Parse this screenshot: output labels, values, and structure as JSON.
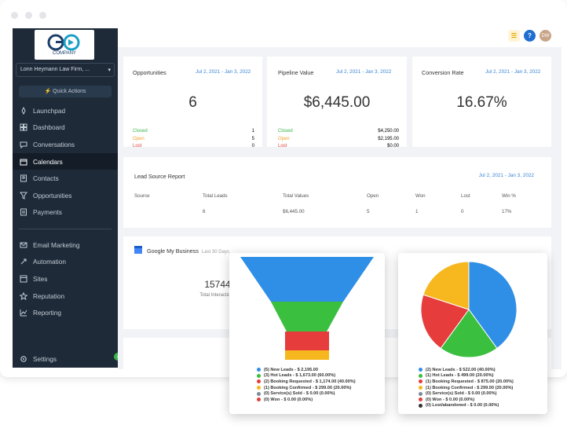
{
  "window": {
    "logo_text_main": "GO",
    "logo_text_sub": "COMPANY",
    "logo_tagline": ""
  },
  "sidebar": {
    "account": "Lonn Heymann Law Firm, ...",
    "quick_actions": "Quick Actions",
    "items_top": [
      {
        "label": "Launchpad",
        "icon": "rocket-icon"
      },
      {
        "label": "Dashboard",
        "icon": "dashboard-icon"
      },
      {
        "label": "Conversations",
        "icon": "chat-icon"
      },
      {
        "label": "Calendars",
        "icon": "calendar-icon",
        "active": true
      },
      {
        "label": "Contacts",
        "icon": "contacts-icon"
      },
      {
        "label": "Opportunities",
        "icon": "funnel-icon"
      },
      {
        "label": "Payments",
        "icon": "payments-icon"
      }
    ],
    "items_bottom": [
      {
        "label": "Email Marketing",
        "icon": "email-icon"
      },
      {
        "label": "Automation",
        "icon": "automation-icon"
      },
      {
        "label": "Sites",
        "icon": "sites-icon"
      },
      {
        "label": "Reputation",
        "icon": "star-icon"
      },
      {
        "label": "Reporting",
        "icon": "chart-icon"
      }
    ],
    "settings": "Settings"
  },
  "header": {
    "help": "?",
    "avatar_initials": "DW"
  },
  "cards": {
    "opportunities": {
      "title": "Opportunities",
      "date": "Jul 2, 2021 - Jan 3, 2022",
      "value": "6",
      "rows": [
        {
          "label": "Closed",
          "value": "1"
        },
        {
          "label": "Open",
          "value": "5"
        },
        {
          "label": "Lost",
          "value": "0"
        }
      ]
    },
    "pipeline": {
      "title": "Pipeline Value",
      "date": "Jul 2, 2021 - Jan 3, 2022",
      "value": "$6,445.00",
      "rows": [
        {
          "label": "Closed",
          "value": "$4,250.00"
        },
        {
          "label": "Open",
          "value": "$2,195.00"
        },
        {
          "label": "Lost",
          "value": "$0.00"
        }
      ]
    },
    "conversion": {
      "title": "Conversion Rate",
      "date": "Jul 2, 2021 - Jan 3, 2022",
      "value": "16.67%"
    }
  },
  "lead_source": {
    "title": "Lead Source Report",
    "date": "Jul 2, 2021 - Jan 3, 2022",
    "headers": [
      "Source",
      "Total Leads",
      "Total Values",
      "Open",
      "Won",
      "Lost",
      "Win %"
    ],
    "row": [
      "",
      "6",
      "$6,445.00",
      "5",
      "1",
      "0",
      "17%"
    ]
  },
  "gmb": {
    "title": "Google My Business",
    "subtitle": "Last 30 Days",
    "value": "15744",
    "label": "Total Interactions"
  },
  "funnel": {
    "colors": {
      "new": "#2f8fe6",
      "hot": "#3bbf3f",
      "booking_requested": "#e63c3c",
      "booking_confirmed": "#f7b81f",
      "sold": "#7b8a97",
      "won": "#e0413b"
    },
    "legend": [
      {
        "label": "(5) New Leads - $ 2,195.00",
        "color": "#2f8fe6"
      },
      {
        "label": "(3) Hot Leads - $ 1,673.00 (60.00%)",
        "color": "#3bbf3f"
      },
      {
        "label": "(2) Booking Requested - $ 1,174.00 (40.00%)",
        "color": "#e63c3c"
      },
      {
        "label": "(1) Booking Confirmed - $ 299.00 (20.00%)",
        "color": "#f7b81f"
      },
      {
        "label": "(0) Service(s) Sold - $ 0.00 (0.00%)",
        "color": "#7b8a97"
      },
      {
        "label": "(0) Won - $ 0.00 (0.00%)",
        "color": "#e0413b"
      }
    ]
  },
  "pie": {
    "slices": [
      {
        "value": 40,
        "color": "#2f8fe6"
      },
      {
        "value": 20,
        "color": "#3bbf3f"
      },
      {
        "value": 20,
        "color": "#e63c3c"
      },
      {
        "value": 20,
        "color": "#f7b81f"
      }
    ],
    "legend": [
      {
        "label": "(2) New Leads - $ 522.00 (40.00%)",
        "color": "#2f8fe6"
      },
      {
        "label": "(1) Hot Leads - $ 499.00 (20.00%)",
        "color": "#3bbf3f"
      },
      {
        "label": "(1) Booking Requested - $ 875.00 (20.00%)",
        "color": "#e63c3c"
      },
      {
        "label": "(1) Booking Confirmed - $ 299.00 (20.00%)",
        "color": "#f7b81f"
      },
      {
        "label": "(0) Service(s) Sold - $ 0.00 (0.00%)",
        "color": "#7b8a97"
      },
      {
        "label": "(0) Won - $ 0.00 (0.00%)",
        "color": "#e0413b"
      },
      {
        "label": "(0) Lost/abandoned - $ 0.00 (0.00%)",
        "color": "#333333"
      }
    ]
  }
}
